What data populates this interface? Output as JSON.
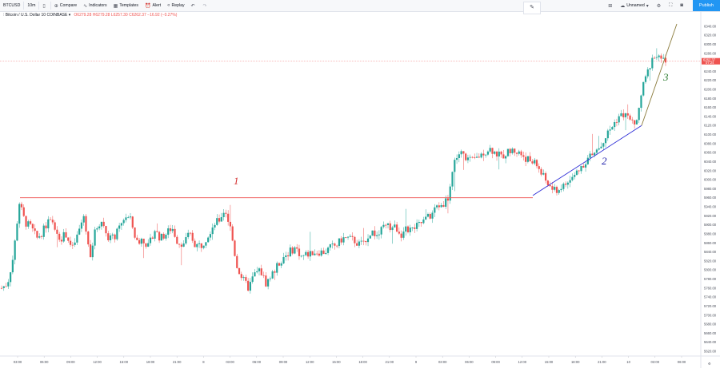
{
  "toolbar": {
    "symbol": "BTCUSD",
    "interval": "10m",
    "compare": "Compare",
    "indicators": "Indicators",
    "templates": "Templates",
    "alert": "Alert",
    "replay": "Replay",
    "layout_name": "Unnamed",
    "publish": "Publish"
  },
  "legend": {
    "title": "Bitcoin / U.S. Dollar",
    "interval": "10",
    "exchange": "COINBASE",
    "open": "O6279.28",
    "high": "H6279.28",
    "low": "L6257.30",
    "close": "C6262.37",
    "change": "−16.92 (−0.27%)"
  },
  "colors": {
    "up": "#26a69a",
    "down": "#ef5350",
    "line1": "#ef5350",
    "line2": "#2b2bd6",
    "line3": "#8a7a3a",
    "label1": "#d32f2f",
    "label2": "#1a1aa8",
    "label3": "#2e7d32",
    "accent": "#2196f3"
  },
  "price_axis": {
    "labels": [
      "6340.00",
      "6320.00",
      "6300.00",
      "6280.00",
      "6260.00",
      "6240.00",
      "6220.00",
      "6200.00",
      "6180.00",
      "6160.00",
      "6140.00",
      "6120.00",
      "6100.00",
      "6080.00",
      "6060.00",
      "6040.00",
      "6020.00",
      "6000.00",
      "5980.00",
      "5960.00",
      "5940.00",
      "5920.00",
      "5900.00",
      "5880.00",
      "5860.00",
      "5840.00",
      "5820.00",
      "5800.00",
      "5780.00",
      "5760.00",
      "5740.00",
      "5720.00",
      "5700.00",
      "5680.00",
      "5660.00",
      "5640.00",
      "5620.00"
    ],
    "last_price": "6262.37",
    "countdown": "07:24"
  },
  "time_axis": {
    "labels": [
      "03:00",
      "06:00",
      "09:00",
      "12:00",
      "15:00",
      "18:00",
      "21:00",
      "8",
      "03:00",
      "06:00",
      "09:00",
      "12:00",
      "15:00",
      "18:00",
      "21:00",
      "9",
      "03:00",
      "06:00",
      "09:00",
      "12:00",
      "15:00",
      "18:00",
      "21:00",
      "10",
      "03:00",
      "06:00"
    ]
  },
  "annotations": {
    "label1": "1",
    "label2": "2",
    "label3": "3"
  },
  "chart_data": {
    "type": "candlestick",
    "symbol": "BTCUSD",
    "ylim": [
      5620,
      6345
    ],
    "trend_lines": [
      {
        "label": "1",
        "kind": "horizontal",
        "price": 5960
      },
      {
        "label": "2",
        "kind": "rising-support",
        "from_price": 5965,
        "to_price": 6120
      },
      {
        "label": "3",
        "kind": "rising-support",
        "from_price": 6120,
        "to_price": 6345
      }
    ],
    "anchor_prices": [
      5760,
      5770,
      5830,
      5950,
      5905,
      5895,
      5870,
      5885,
      5910,
      5895,
      5870,
      5880,
      5845,
      5880,
      5920,
      5830,
      5890,
      5910,
      5875,
      5870,
      5890,
      5920,
      5910,
      5860,
      5870,
      5850,
      5890,
      5870,
      5880,
      5895,
      5860,
      5860,
      5880,
      5855,
      5855,
      5875,
      5900,
      5910,
      5935,
      5890,
      5810,
      5780,
      5760,
      5790,
      5800,
      5770,
      5790,
      5810,
      5830,
      5840,
      5850,
      5830,
      5835,
      5840,
      5840,
      5840,
      5850,
      5855,
      5870,
      5870,
      5865,
      5855,
      5870,
      5885,
      5875,
      5895,
      5895,
      5895,
      5880,
      5890,
      5890,
      5900,
      5910,
      5920,
      5940,
      5945,
      5960,
      6040,
      6060,
      6050,
      6040,
      6050,
      6060,
      6070,
      6060,
      6050,
      6060,
      6065,
      6060,
      6050,
      6040,
      6035,
      6010,
      5990,
      5975,
      5980,
      5990,
      6000,
      6020,
      6035,
      6050,
      6060,
      6075,
      6100,
      6120,
      6140,
      6145,
      6130,
      6120,
      6200,
      6240,
      6280,
      6265,
      6262
    ]
  }
}
